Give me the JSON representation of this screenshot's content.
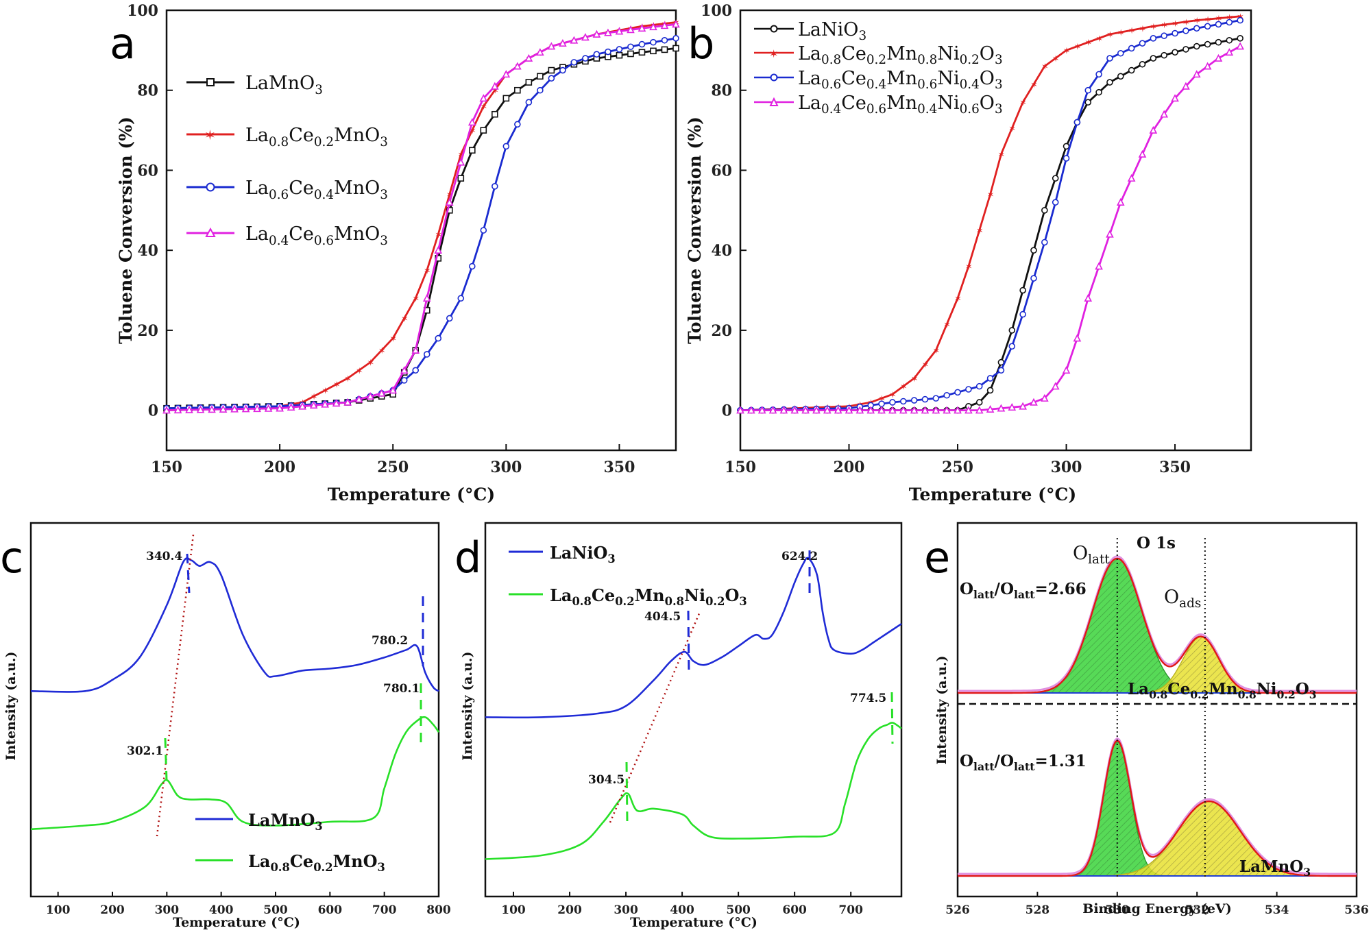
{
  "chart_data": [
    {
      "id": "a",
      "panel_label": "a",
      "type": "line",
      "xlabel": "Temperature (°C)",
      "ylabel": "Toluene Conversion (%)",
      "xlim": [
        150,
        375
      ],
      "ylim": [
        -10,
        100
      ],
      "xticks": [
        150,
        200,
        250,
        300,
        350
      ],
      "yticks": [
        0,
        20,
        40,
        60,
        80,
        100
      ],
      "series": [
        {
          "name": "LaMnO3",
          "label_parts": [
            "LaMnO",
            "3"
          ],
          "color": "#111111",
          "x": [
            150,
            200,
            230,
            250,
            260,
            265,
            270,
            275,
            280,
            285,
            290,
            300,
            310,
            320,
            340,
            360,
            375
          ],
          "y": [
            0.5,
            1,
            2,
            4,
            15,
            25,
            38,
            50,
            58,
            65,
            70,
            78,
            82,
            85,
            88,
            89.5,
            90.5
          ]
        },
        {
          "name": "La0.8Ce0.2MnO3",
          "label_parts": [
            "La",
            "0.8",
            "Ce",
            "0.2",
            "MnO",
            "3"
          ],
          "color": "#e02020",
          "x": [
            150,
            200,
            210,
            220,
            230,
            240,
            250,
            260,
            265,
            270,
            275,
            280,
            290,
            300,
            310,
            320,
            340,
            360,
            375
          ],
          "y": [
            0,
            1,
            2,
            5,
            8,
            12,
            18,
            28,
            35,
            44,
            54,
            64,
            76,
            84,
            88,
            91,
            94,
            96,
            97
          ]
        },
        {
          "name": "La0.6Ce0.4MnO3",
          "label_parts": [
            "La",
            "0.6",
            "Ce",
            "0.4",
            "MnO",
            "3"
          ],
          "color": "#1a2bd0",
          "x": [
            150,
            200,
            230,
            250,
            260,
            270,
            280,
            285,
            290,
            295,
            300,
            310,
            320,
            330,
            340,
            360,
            375
          ],
          "y": [
            0.5,
            1,
            2,
            5,
            10,
            18,
            28,
            36,
            45,
            56,
            66,
            77,
            83,
            87,
            89,
            91.5,
            93
          ]
        },
        {
          "name": "La0.4Ce0.6MnO3",
          "label_parts": [
            "La",
            "0.4",
            "Ce",
            "0.6",
            "MnO",
            "3"
          ],
          "color": "#e020e0",
          "x": [
            150,
            200,
            230,
            250,
            260,
            265,
            270,
            275,
            280,
            285,
            290,
            300,
            310,
            320,
            340,
            360,
            375
          ],
          "y": [
            0,
            0.5,
            2,
            5,
            15,
            28,
            40,
            52,
            62,
            72,
            78,
            84,
            88,
            91,
            94,
            95.5,
            96.5
          ]
        }
      ]
    },
    {
      "id": "b",
      "panel_label": "b",
      "type": "line",
      "xlabel": "Temperature (°C)",
      "ylabel": "Toluene Conversion (%)",
      "xlim": [
        150,
        385
      ],
      "ylim": [
        -10,
        100
      ],
      "xticks": [
        150,
        200,
        250,
        300,
        350
      ],
      "yticks": [
        0,
        20,
        40,
        60,
        80,
        100
      ],
      "series": [
        {
          "name": "LaNiO3",
          "label_parts": [
            "LaNiO",
            "3"
          ],
          "color": "#111111",
          "x": [
            150,
            250,
            260,
            265,
            270,
            275,
            280,
            285,
            290,
            295,
            300,
            305,
            310,
            320,
            330,
            340,
            360,
            380
          ],
          "y": [
            0,
            0,
            2,
            5,
            12,
            20,
            30,
            40,
            50,
            58,
            66,
            72,
            77,
            82,
            85,
            88,
            91,
            93
          ]
        },
        {
          "name": "La0.8Ce0.2Mn0.8Ni0.2O3",
          "label_parts": [
            "La",
            "0.8",
            "Ce",
            "0.2",
            "Mn",
            "0.8",
            "Ni",
            "0.2",
            "O",
            "3"
          ],
          "color": "#e02020",
          "x": [
            150,
            200,
            210,
            220,
            230,
            240,
            250,
            255,
            260,
            265,
            270,
            280,
            290,
            300,
            320,
            340,
            360,
            380
          ],
          "y": [
            0,
            1,
            2,
            4,
            8,
            15,
            28,
            36,
            45,
            54,
            64,
            77,
            86,
            90,
            94,
            96,
            97.5,
            98.5
          ]
        },
        {
          "name": "La0.6Ce0.4Mn0.6Ni0.4O3",
          "label_parts": [
            "La",
            "0.6",
            "Ce",
            "0.4",
            "Mn",
            "0.6",
            "Ni",
            "0.4",
            "O",
            "3"
          ],
          "color": "#1a2bd0",
          "x": [
            150,
            200,
            220,
            240,
            260,
            270,
            275,
            280,
            285,
            290,
            295,
            300,
            305,
            310,
            320,
            340,
            360,
            380
          ],
          "y": [
            0,
            0.5,
            2,
            3,
            6,
            10,
            16,
            24,
            33,
            42,
            52,
            63,
            72,
            80,
            88,
            93,
            95.5,
            97.5
          ]
        },
        {
          "name": "La0.4Ce0.6Mn0.4Ni0.6O3",
          "label_parts": [
            "La",
            "0.4",
            "Ce",
            "0.6",
            "Mn",
            "0.4",
            "Ni",
            "0.6",
            "O",
            "3"
          ],
          "color": "#e020e0",
          "x": [
            150,
            260,
            280,
            290,
            295,
            300,
            305,
            310,
            315,
            320,
            325,
            330,
            335,
            340,
            350,
            360,
            370,
            380
          ],
          "y": [
            0,
            0,
            1,
            3,
            6,
            10,
            18,
            28,
            36,
            44,
            52,
            58,
            64,
            70,
            78,
            84,
            88,
            91
          ]
        }
      ]
    },
    {
      "id": "c",
      "panel_label": "c",
      "type": "line",
      "xlabel": "Temperature (°C)",
      "ylabel": "Intensity (a.u.)",
      "xlim": [
        50,
        800
      ],
      "ylim": [
        0,
        1
      ],
      "xticks": [
        100,
        200,
        300,
        400,
        500,
        600,
        700,
        800
      ],
      "annotations": [
        "340.4",
        "780.2",
        "302.1",
        "780.1"
      ],
      "series": [
        {
          "name": "LaMnO3",
          "label_parts": [
            "LaMnO",
            "3"
          ],
          "color": "#1f2bd6",
          "x": [
            50,
            150,
            200,
            250,
            300,
            330,
            345,
            360,
            380,
            400,
            440,
            480,
            500,
            550,
            600,
            650,
            700,
            740,
            760,
            775,
            790,
            800
          ],
          "y": [
            0.55,
            0.55,
            0.58,
            0.64,
            0.78,
            0.895,
            0.9,
            0.885,
            0.895,
            0.86,
            0.7,
            0.6,
            0.59,
            0.605,
            0.61,
            0.62,
            0.64,
            0.66,
            0.67,
            0.6,
            0.56,
            0.55
          ]
        },
        {
          "name": "La0.8Ce0.2MnO3",
          "label_parts": [
            "La",
            "0.8",
            "Ce",
            "0.2",
            "MnO",
            "3"
          ],
          "color": "#28e028",
          "x": [
            50,
            150,
            200,
            260,
            290,
            302,
            320,
            340,
            380,
            410,
            440,
            500,
            600,
            680,
            700,
            720,
            740,
            760,
            775,
            790,
            800
          ],
          "y": [
            0.18,
            0.19,
            0.2,
            0.24,
            0.3,
            0.31,
            0.27,
            0.26,
            0.26,
            0.25,
            0.2,
            0.19,
            0.2,
            0.21,
            0.29,
            0.38,
            0.44,
            0.47,
            0.48,
            0.46,
            0.44
          ]
        }
      ]
    },
    {
      "id": "d",
      "panel_label": "d",
      "type": "line",
      "xlabel": "Temperature (°C)",
      "ylabel": "Intensity (a.u.)",
      "xlim": [
        50,
        790
      ],
      "ylim": [
        0,
        1
      ],
      "xticks": [
        100,
        200,
        300,
        400,
        500,
        600,
        700
      ],
      "annotations": [
        "624.2",
        "404.5",
        "774.5",
        "304.5"
      ],
      "series": [
        {
          "name": "LaNiO3",
          "label_parts": [
            "LaNiO",
            "3"
          ],
          "color": "#1f2bd6",
          "x": [
            50,
            150,
            250,
            300,
            350,
            380,
            404,
            420,
            440,
            470,
            500,
            530,
            545,
            560,
            580,
            600,
            615,
            625,
            640,
            650,
            660,
            670,
            700,
            720,
            740,
            760,
            790
          ],
          "y": [
            0.48,
            0.48,
            0.49,
            0.51,
            0.58,
            0.63,
            0.655,
            0.63,
            0.62,
            0.64,
            0.67,
            0.7,
            0.69,
            0.7,
            0.76,
            0.84,
            0.89,
            0.905,
            0.86,
            0.76,
            0.69,
            0.66,
            0.65,
            0.66,
            0.68,
            0.7,
            0.73
          ]
        },
        {
          "name": "La0.8Ce0.2Mn0.8Ni0.2O3",
          "label_parts": [
            "La",
            "0.8",
            "Ce",
            "0.2",
            "Mn",
            "0.8",
            "Ni",
            "0.2",
            "O",
            "3"
          ],
          "color": "#28e028",
          "x": [
            50,
            150,
            220,
            260,
            290,
            304,
            320,
            350,
            400,
            420,
            450,
            500,
            600,
            670,
            690,
            710,
            730,
            750,
            765,
            775,
            790
          ],
          "y": [
            0.1,
            0.11,
            0.14,
            0.2,
            0.26,
            0.275,
            0.23,
            0.235,
            0.22,
            0.19,
            0.16,
            0.155,
            0.16,
            0.17,
            0.25,
            0.36,
            0.42,
            0.45,
            0.46,
            0.465,
            0.45
          ]
        }
      ]
    },
    {
      "id": "e",
      "panel_label": "e",
      "type": "line",
      "title": "O 1s",
      "xlabel": "Binding Energy (eV)",
      "ylabel": "Intensity (a.u.)",
      "xlim": [
        526,
        536
      ],
      "ylim": [
        0,
        1
      ],
      "xticks": [
        526,
        528,
        530,
        532,
        534,
        536
      ],
      "annotations": {
        "olatt_peak_label": [
          "O",
          "latt"
        ],
        "oads_peak_label": [
          "O",
          "ads"
        ],
        "ratio_top": [
          "O",
          "latt",
          "/O",
          "latt",
          "=2.66"
        ],
        "ratio_bottom": [
          "O",
          "latt",
          "/O",
          "latt",
          "=1.31"
        ],
        "sample_top": [
          "La",
          "0.8",
          "Ce",
          "0.2",
          "Mn",
          "0.8",
          "Ni",
          "0.2",
          "O",
          "3"
        ],
        "sample_bottom": [
          "LaMnO",
          "3"
        ],
        "reference_lines_eV": [
          530.0,
          532.2
        ]
      },
      "series": [
        {
          "name": "La0.8Ce0.2Mn0.8Ni0.2O3 envelope",
          "color": "#e01818",
          "components": [
            {
              "center": 530.0,
              "height": 0.36,
              "width": 0.62
            },
            {
              "center": 532.1,
              "height": 0.15,
              "width": 0.45
            }
          ],
          "baseline": 0.545
        },
        {
          "name": "LaMnO3 envelope",
          "color": "#e01818",
          "components": [
            {
              "center": 530.0,
              "height": 0.36,
              "width": 0.34
            },
            {
              "center": 532.3,
              "height": 0.2,
              "width": 0.78
            }
          ],
          "baseline": 0.055
        }
      ]
    }
  ]
}
